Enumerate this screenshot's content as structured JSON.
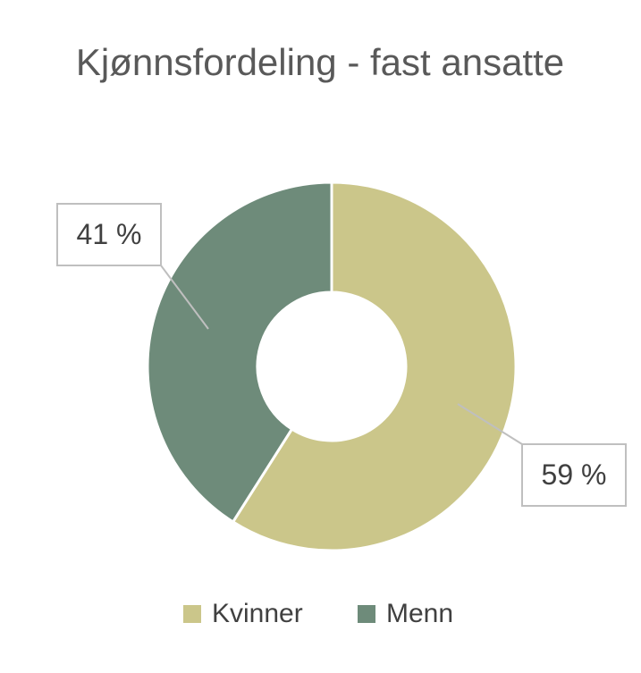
{
  "chart_data": {
    "type": "donut",
    "title": "Kjønnsfordeling - fast ansatte",
    "categories": [
      "Kvinner",
      "Menn"
    ],
    "values": [
      59,
      41
    ],
    "value_labels": [
      "59 %",
      "41 %"
    ],
    "colors": [
      "#cbc68a",
      "#6e8b7a"
    ],
    "legend": "bottom"
  }
}
